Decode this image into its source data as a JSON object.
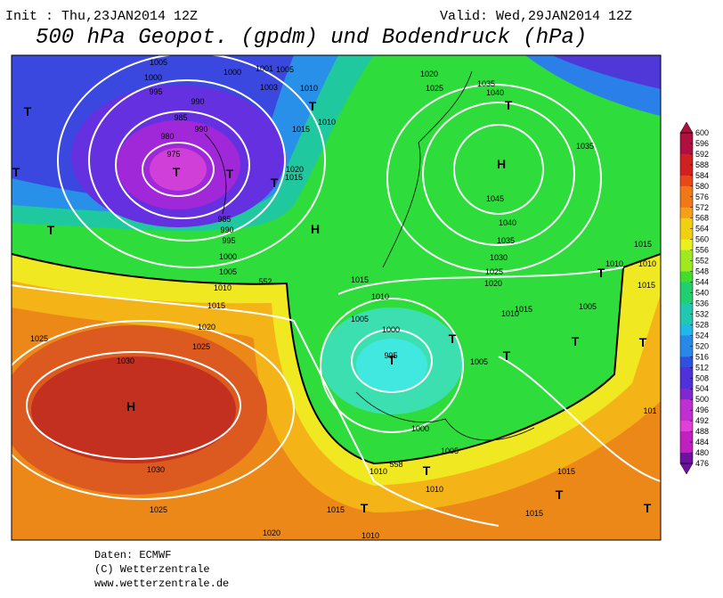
{
  "header": {
    "init": "Init : Thu,23JAN2014 12Z",
    "valid": "Valid: Wed,29JAN2014 12Z",
    "title": "500 hPa Geopot. (gpdm) und Bodendruck (hPa)"
  },
  "map_labels": [
    "1005",
    "1000",
    "995",
    "990",
    "985",
    "990",
    "980",
    "975",
    "T",
    "T",
    "T",
    "T",
    "T",
    "985",
    "990",
    "995",
    "1000",
    "1005",
    "1010",
    "1015",
    "1020",
    "1025",
    "1025",
    "1030",
    "H",
    "1030",
    "1025",
    "1020",
    "1000",
    "1001",
    "1005",
    "1003",
    "1010",
    "T",
    "1010",
    "1015",
    "1020",
    "1015",
    "T",
    "H",
    "552",
    "1020",
    "1025",
    "1035",
    "1040",
    "T",
    "H",
    "1035",
    "1045",
    "1040",
    "1035",
    "1030",
    "1025",
    "1020",
    "1015",
    "1010",
    "1005",
    "1000",
    "995",
    "T",
    "T",
    "1005",
    "T",
    "1010",
    "1015",
    "1005",
    "T",
    "T",
    "T",
    "1015",
    "1010",
    "1010",
    "1015",
    "1000",
    "1005",
    "558",
    "1010",
    "T",
    "1010",
    "1015",
    "T",
    "T",
    "T",
    "1015",
    "1010",
    "1015",
    "101"
  ],
  "colorbar": {
    "ticks": [
      600,
      596,
      592,
      588,
      584,
      580,
      576,
      572,
      568,
      564,
      560,
      556,
      552,
      548,
      544,
      540,
      536,
      532,
      528,
      524,
      520,
      516,
      512,
      508,
      504,
      500,
      496,
      492,
      488,
      484,
      480,
      476
    ]
  },
  "footer": {
    "source": "Daten: ECMWF",
    "copyright": "(C) Wetterzentrale",
    "url": "www.wetterzentrale.de"
  }
}
